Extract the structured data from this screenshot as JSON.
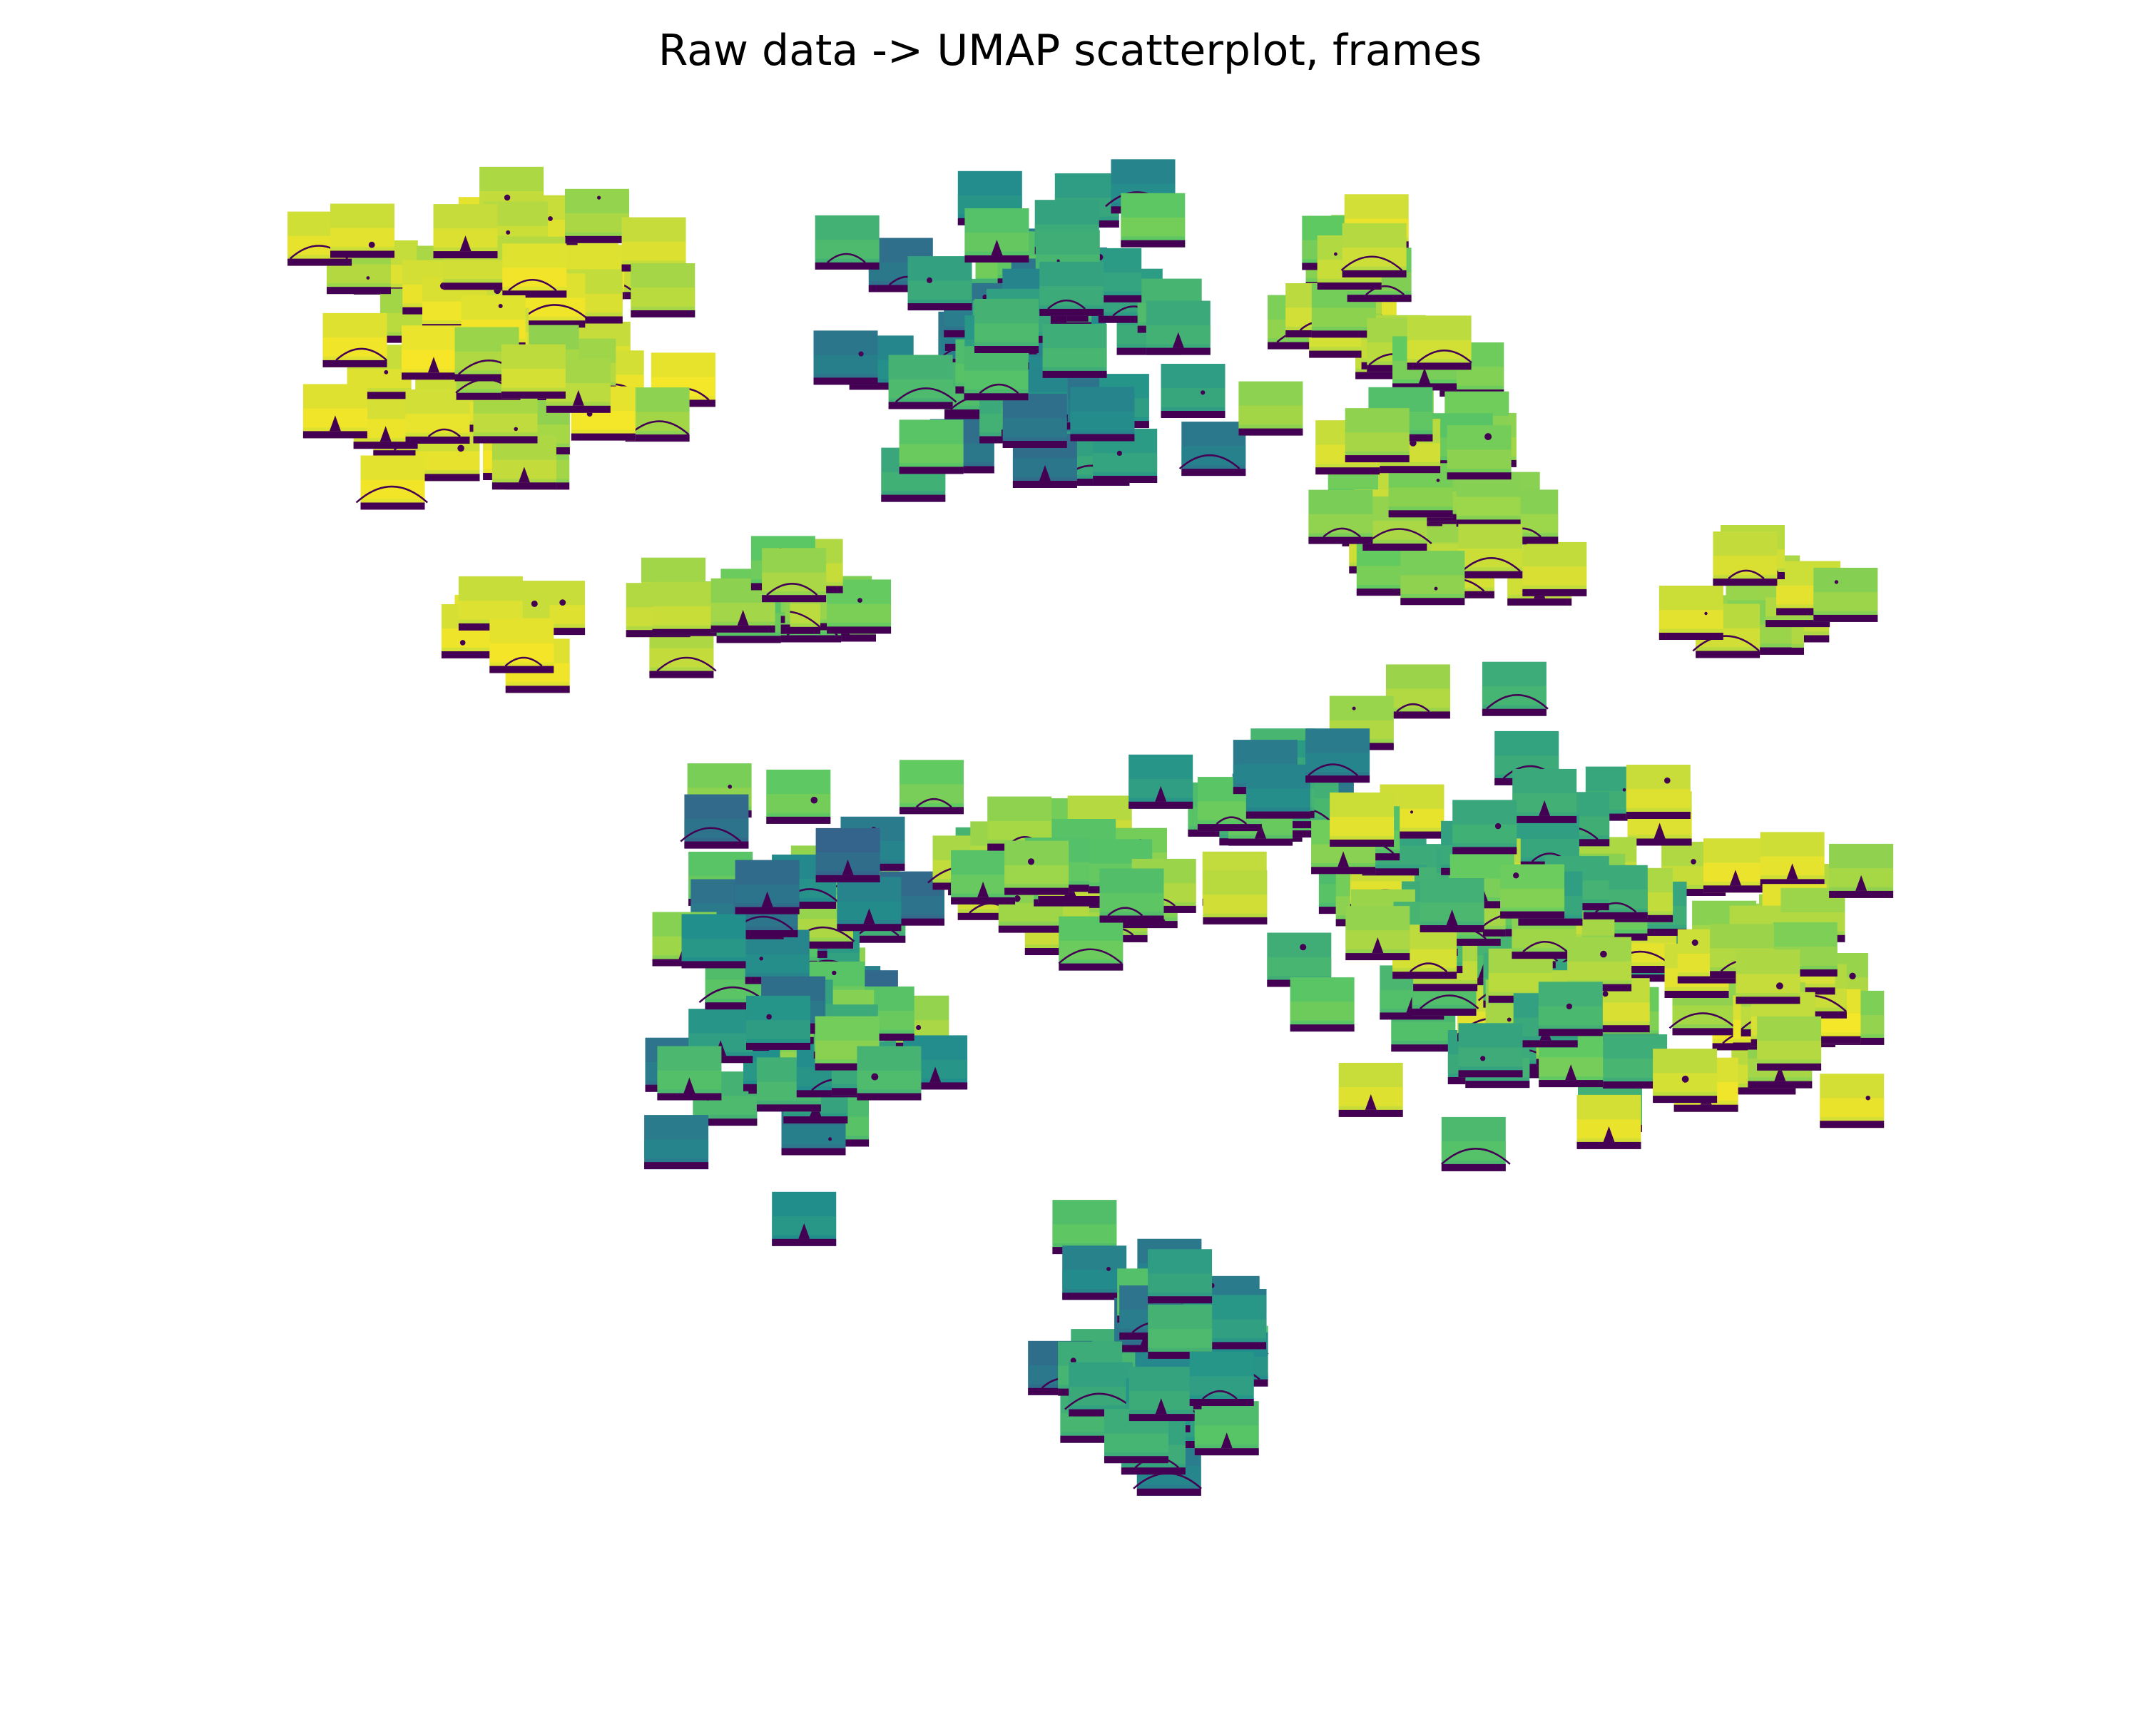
{
  "chart_data": {
    "type": "scatter",
    "title": "Raw data -> UMAP scatterplot, frames",
    "xlabel": "",
    "ylabel": "",
    "axes": "off",
    "grid": false,
    "legend": "none",
    "marker": "image-thumbnail",
    "colormap": "viridis",
    "colors": {
      "background": "#ffffff",
      "frame_bottom": "#440154",
      "teal": "#21908d",
      "green": "#5ec962",
      "yellow": "#dde318"
    },
    "xlim": [
      0,
      15
    ],
    "ylim": [
      0,
      12
    ],
    "clusters": [
      {
        "cx": 2.5,
        "cy": 10.2,
        "sx": 1.0,
        "sy": 1.1,
        "n": 70,
        "tone": [
          0.82,
          0.98
        ]
      },
      {
        "cx": 2.7,
        "cy": 7.8,
        "sx": 0.35,
        "sy": 0.35,
        "n": 8,
        "tone": [
          0.85,
          0.98
        ]
      },
      {
        "cx": 4.6,
        "cy": 8.0,
        "sx": 0.9,
        "sy": 0.35,
        "n": 18,
        "tone": [
          0.7,
          0.9
        ]
      },
      {
        "cx": 6.7,
        "cy": 10.0,
        "sx": 1.2,
        "sy": 0.9,
        "n": 65,
        "tone": [
          0.35,
          0.75
        ]
      },
      {
        "cx": 9.4,
        "cy": 10.6,
        "sx": 0.5,
        "sy": 0.6,
        "n": 16,
        "tone": [
          0.75,
          0.95
        ]
      },
      {
        "cx": 10.2,
        "cy": 8.8,
        "sx": 0.9,
        "sy": 0.9,
        "n": 40,
        "tone": [
          0.7,
          0.92
        ]
      },
      {
        "cx": 12.8,
        "cy": 8.0,
        "sx": 0.5,
        "sy": 0.5,
        "n": 14,
        "tone": [
          0.8,
          0.95
        ]
      },
      {
        "cx": 5.0,
        "cy": 5.0,
        "sx": 0.9,
        "sy": 1.3,
        "n": 75,
        "tone": [
          0.3,
          0.85
        ]
      },
      {
        "cx": 7.0,
        "cy": 5.8,
        "sx": 0.9,
        "sy": 0.5,
        "n": 32,
        "tone": [
          0.7,
          0.92
        ]
      },
      {
        "cx": 8.8,
        "cy": 6.4,
        "sx": 0.7,
        "sy": 0.4,
        "n": 20,
        "tone": [
          0.4,
          0.75
        ]
      },
      {
        "cx": 10.8,
        "cy": 5.4,
        "sx": 1.4,
        "sy": 1.1,
        "n": 110,
        "tone": [
          0.55,
          0.95
        ]
      },
      {
        "cx": 13.0,
        "cy": 5.0,
        "sx": 0.8,
        "sy": 0.9,
        "n": 38,
        "tone": [
          0.8,
          0.97
        ]
      },
      {
        "cx": 7.9,
        "cy": 1.9,
        "sx": 0.8,
        "sy": 0.9,
        "n": 45,
        "tone": [
          0.35,
          0.72
        ]
      }
    ]
  }
}
